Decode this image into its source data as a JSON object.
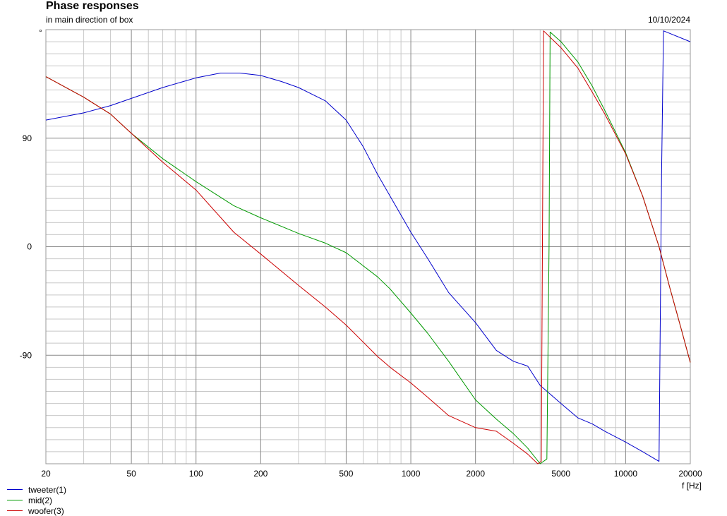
{
  "chart_data": {
    "type": "line",
    "title": "Phase responses",
    "subtitle": "in main direction of box",
    "date": "10/10/2024",
    "ylabel": "°",
    "xlabel": "f [Hz]",
    "x_scale": "log",
    "xlim": [
      20,
      20000
    ],
    "ylim": [
      -180,
      180
    ],
    "x_ticks": [
      20,
      50,
      100,
      200,
      500,
      1000,
      2000,
      5000,
      10000,
      20000
    ],
    "y_ticks": [
      90,
      0,
      -90
    ],
    "grid": true,
    "legend_position": "bottom-left",
    "series": [
      {
        "name": "tweeter(1)",
        "color": "#0000cc",
        "x": [
          20,
          30,
          40,
          50,
          70,
          100,
          130,
          160,
          200,
          250,
          300,
          400,
          500,
          600,
          700,
          800,
          1000,
          1200,
          1500,
          2000,
          2500,
          3000,
          3500,
          4000,
          5000,
          6000,
          7000,
          8000,
          10000,
          12000,
          14000,
          14300,
          14700,
          15000,
          20000
        ],
        "y": [
          105,
          111,
          117,
          123,
          132,
          140,
          144,
          144,
          142,
          137,
          132,
          121,
          105,
          83,
          60,
          42,
          12,
          -10,
          -38,
          -63,
          -86,
          -95,
          -99,
          -115,
          -130,
          -142,
          -147,
          -153,
          -162,
          -170,
          -177,
          -178,
          60,
          179,
          170
        ]
      },
      {
        "name": "mid(2)",
        "color": "#009900",
        "x": [
          20,
          30,
          40,
          50,
          70,
          100,
          150,
          200,
          300,
          400,
          500,
          700,
          800,
          1000,
          1200,
          1500,
          2000,
          2500,
          3000,
          3500,
          4000,
          4300,
          4400,
          4450,
          5000,
          6000,
          7000,
          8000,
          10000,
          12000,
          14300,
          16000,
          18000,
          20000
        ],
        "y": [
          141,
          124,
          110,
          94,
          73,
          54,
          34,
          24,
          11,
          3,
          -5,
          -25,
          -35,
          -55,
          -72,
          -95,
          -127,
          -143,
          -155,
          -167,
          -180,
          -176,
          0,
          178,
          170,
          153,
          133,
          113,
          78,
          42,
          0,
          -33,
          -66,
          -96
        ]
      },
      {
        "name": "woofer(3)",
        "color": "#cc0000",
        "x": [
          20,
          30,
          40,
          50,
          70,
          100,
          150,
          200,
          300,
          400,
          500,
          700,
          800,
          1000,
          1200,
          1500,
          2000,
          2500,
          3000,
          3500,
          3900,
          4050,
          4100,
          4150,
          5000,
          6000,
          7000,
          8000,
          10000,
          12000,
          14300,
          16000,
          18000,
          20000
        ],
        "y": [
          141,
          124,
          110,
          94,
          70,
          47,
          12,
          -6,
          -32,
          -50,
          -65,
          -91,
          -100,
          -113,
          -125,
          -140,
          -150,
          -153,
          -163,
          -172,
          -180,
          -178,
          0,
          179,
          165,
          148,
          128,
          110,
          77,
          42,
          0,
          -33,
          -66,
          -96
        ]
      }
    ]
  }
}
